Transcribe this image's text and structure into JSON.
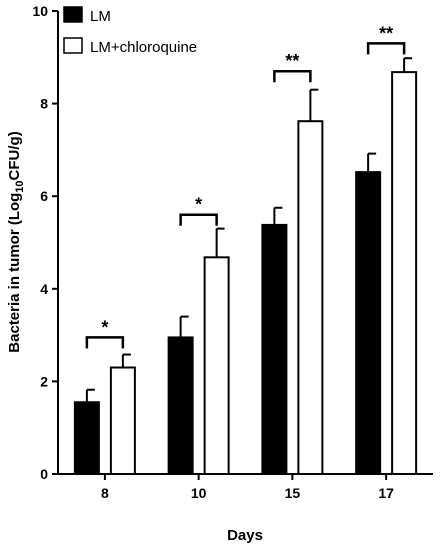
{
  "chart_data": {
    "type": "bar",
    "categories": [
      "8",
      "10",
      "15",
      "17"
    ],
    "xlabel": "Days",
    "ylabel": "Bacteria in tumor (Log",
    "ylabel_sub": "10",
    "ylabel_tail": "CFU/g)",
    "ylim": [
      0,
      10
    ],
    "yticks": [
      "0",
      "2",
      "4",
      "6",
      "8",
      "10"
    ],
    "yticks_values": [
      0,
      2,
      4,
      6,
      8,
      10
    ],
    "grid": false,
    "legend_position": "top-left",
    "series": [
      {
        "name": "LM",
        "values": [
          1.55,
          2.95,
          5.38,
          6.52
        ],
        "errors": [
          0.27,
          0.45,
          0.37,
          0.4
        ],
        "color": "#000000",
        "fill": "solid"
      },
      {
        "name": "LM+chloroquine",
        "values": [
          2.3,
          4.68,
          7.62,
          8.68
        ],
        "errors": [
          0.28,
          0.62,
          0.68,
          0.3
        ],
        "color": "#ffffff",
        "fill": "outline"
      }
    ],
    "significance": [
      {
        "label": "*",
        "level": 2.95
      },
      {
        "label": "*",
        "level": 5.6
      },
      {
        "label": "**",
        "level": 8.7
      },
      {
        "label": "**",
        "level": 9.3
      }
    ]
  }
}
